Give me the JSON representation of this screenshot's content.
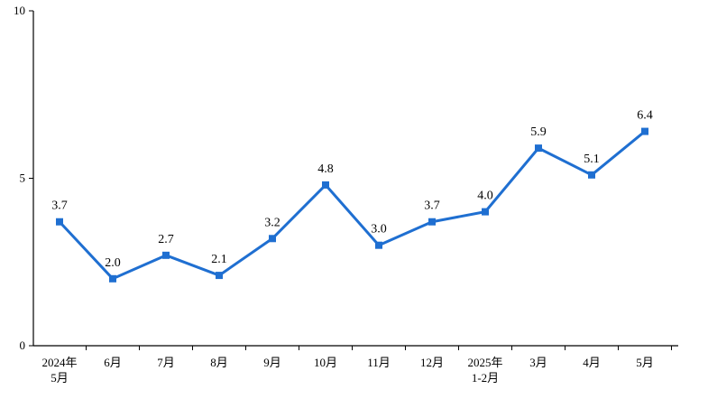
{
  "chart_data": {
    "type": "line",
    "categories": [
      [
        "2024年",
        "5月"
      ],
      [
        "6月"
      ],
      [
        "7月"
      ],
      [
        "8月"
      ],
      [
        "9月"
      ],
      [
        "10月"
      ],
      [
        "11月"
      ],
      [
        "12月"
      ],
      [
        "2025年",
        "1-2月"
      ],
      [
        "3月"
      ],
      [
        "4月"
      ],
      [
        "5月"
      ]
    ],
    "values": [
      3.7,
      2.0,
      2.7,
      2.1,
      3.2,
      4.8,
      3.0,
      3.7,
      4.0,
      5.9,
      5.1,
      6.4
    ],
    "data_labels": [
      "3.7",
      "2.0",
      "2.7",
      "2.1",
      "3.2",
      "4.8",
      "3.0",
      "3.7",
      "4.0",
      "5.9",
      "5.1",
      "6.4"
    ],
    "ylim": [
      0,
      10
    ],
    "yticks": [
      0,
      5,
      10
    ],
    "grid": false,
    "legend": "none",
    "title": "",
    "xlabel": "",
    "ylabel": "",
    "line_color": "#1f6fd1",
    "axis_color": "#000000"
  }
}
